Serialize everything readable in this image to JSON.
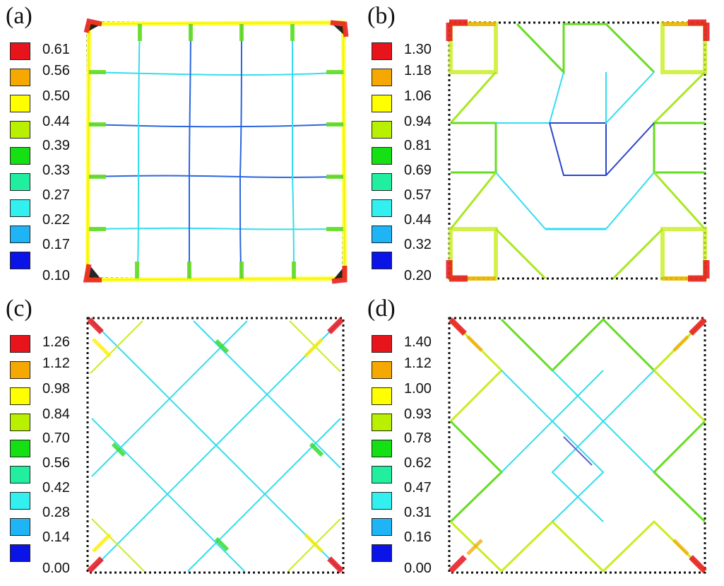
{
  "panels": [
    {
      "label": "(a)",
      "legend": [
        "0.61",
        "0.56",
        "0.50",
        "0.44",
        "0.39",
        "0.33",
        "0.27",
        "0.22",
        "0.17",
        "0.10"
      ],
      "kind": "square-grid"
    },
    {
      "label": "(b)",
      "legend": [
        "1.30",
        "1.18",
        "1.06",
        "0.94",
        "0.81",
        "0.69",
        "0.57",
        "0.44",
        "0.32",
        "0.20"
      ],
      "kind": "star"
    },
    {
      "label": "(c)",
      "legend": [
        "1.26",
        "1.12",
        "0.98",
        "0.84",
        "0.70",
        "0.56",
        "0.42",
        "0.28",
        "0.14",
        "0.00"
      ],
      "kind": "diagonal-lattice"
    },
    {
      "label": "(d)",
      "legend": [
        "1.40",
        "1.12",
        "1.00",
        "0.93",
        "0.78",
        "0.62",
        "0.47",
        "0.31",
        "0.16",
        "0.00"
      ],
      "kind": "cross"
    }
  ],
  "legend_colors": [
    "#e8141c",
    "#f5a800",
    "#ffff00",
    "#b8f000",
    "#14e014",
    "#22eea0",
    "#33f0f0",
    "#1eb4f5",
    "#1a78e6",
    "#0a14e6"
  ]
}
